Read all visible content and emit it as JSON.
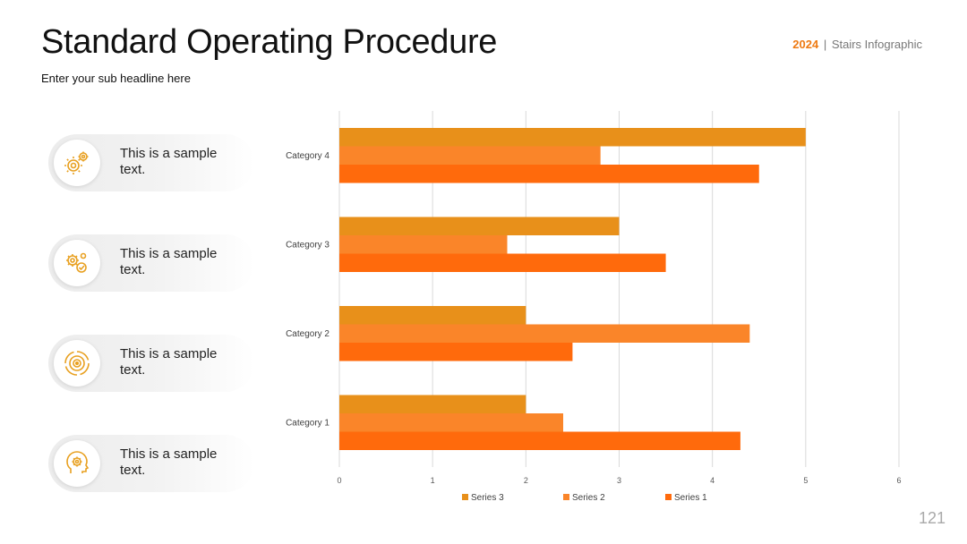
{
  "header": {
    "title": "Standard Operating Procedure",
    "subtitle": "Enter your sub headline here",
    "brand_year": "2024",
    "brand_separator": "|",
    "brand_name": "Stairs Infographic"
  },
  "page_number": "121",
  "items": [
    {
      "text": "This is a sample text.",
      "icon": "gears-icon"
    },
    {
      "text": "This is a sample text.",
      "icon": "gears-check-icon"
    },
    {
      "text": "This is a sample text.",
      "icon": "circular-target-icon"
    },
    {
      "text": "This is a sample text.",
      "icon": "head-gear-icon"
    }
  ],
  "colors": {
    "series_3": "#e8901a",
    "series_2": "#fa8529",
    "series_1": "#ff6a0c",
    "icon": "#e8a020"
  },
  "chart_data": {
    "type": "bar",
    "orientation": "horizontal",
    "categories": [
      "Category 1",
      "Category 2",
      "Category 3",
      "Category 4"
    ],
    "series": [
      {
        "name": "Series 3",
        "values": [
          2,
          2,
          3,
          5
        ]
      },
      {
        "name": "Series 2",
        "values": [
          2.4,
          4.4,
          1.8,
          2.8
        ]
      },
      {
        "name": "Series 1",
        "values": [
          4.3,
          2.5,
          3.5,
          4.5
        ]
      }
    ],
    "xlim": [
      0,
      6
    ],
    "xticks": [
      "0",
      "1",
      "2",
      "3",
      "4",
      "5",
      "6"
    ],
    "grid": true,
    "legend": "bottom"
  }
}
